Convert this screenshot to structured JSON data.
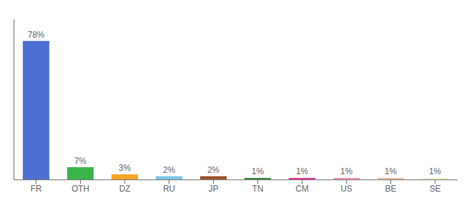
{
  "chart_data": {
    "type": "bar",
    "categories": [
      "FR",
      "OTH",
      "DZ",
      "RU",
      "JP",
      "TN",
      "CM",
      "US",
      "BE",
      "SE"
    ],
    "values": [
      78,
      7,
      3,
      2,
      2,
      1,
      1,
      1,
      1,
      1
    ],
    "value_labels": [
      "78%",
      "7%",
      "3%",
      "2%",
      "2%",
      "1%",
      "1%",
      "1%",
      "1%",
      "1%"
    ],
    "colors": [
      "#4d6fd4",
      "#3ab54a",
      "#f5a623",
      "#7ec8e3",
      "#a0522d",
      "#2e7d32",
      "#e91e8c",
      "#f48fb1",
      "#f0b89a",
      "#f5f0d0"
    ],
    "ylim": [
      0,
      90
    ],
    "yticks": [],
    "tick_labels": "x",
    "data_labels": true,
    "grid": false
  }
}
